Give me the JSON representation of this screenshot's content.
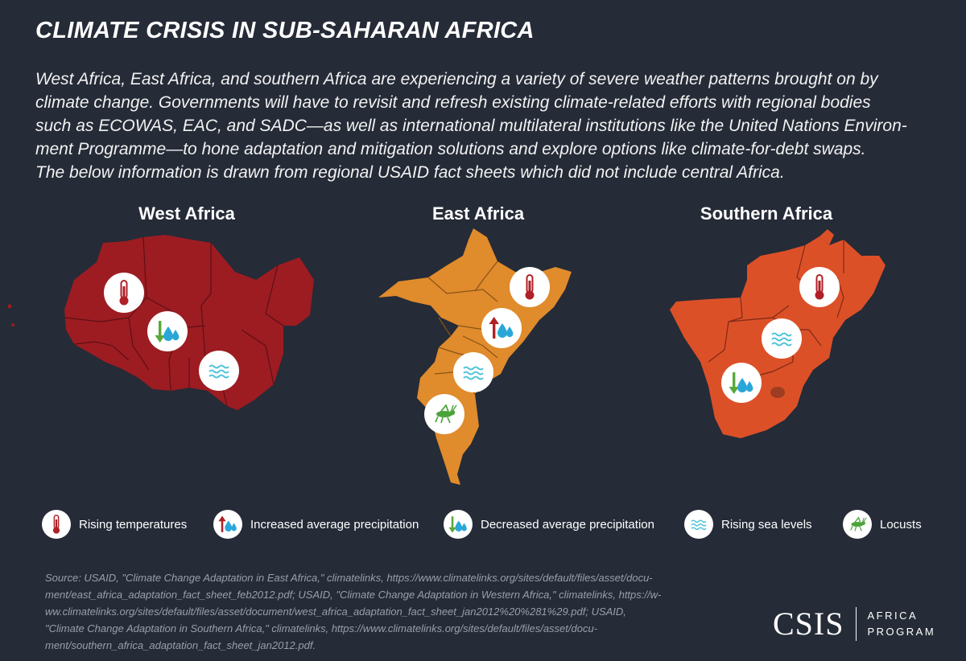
{
  "title": "CLIMATE CRISIS IN SUB-SAHARAN AFRICA",
  "intro_lines": [
    "West Africa, East Africa, and southern Africa are experiencing a variety of severe weather patterns brought on by",
    "climate change. Governments will have to revisit and refresh existing climate-related efforts with regional bodies",
    "such as ECOWAS, EAC, and SADC—as well as international multilateral institutions like the United Nations Environ-",
    "ment Programme—to hone adaptation and mitigation solutions and explore options like climate-for-debt swaps.",
    "The below information is drawn from regional USAID fact sheets which did not include central Africa."
  ],
  "regions": [
    {
      "name": "West Africa",
      "color": "#9c1c22",
      "icons": [
        "thermometer-icon",
        "decreased-precipitation-icon",
        "sea-level-icon"
      ]
    },
    {
      "name": "East Africa",
      "color": "#e08b2c",
      "icons": [
        "thermometer-icon",
        "increased-precipitation-icon",
        "sea-level-icon",
        "locust-icon"
      ]
    },
    {
      "name": "Southern Africa",
      "color": "#dc5028",
      "icons": [
        "thermometer-icon",
        "sea-level-icon",
        "decreased-precipitation-icon"
      ]
    }
  ],
  "legend": [
    {
      "icon": "thermometer-icon",
      "label": "Rising temperatures"
    },
    {
      "icon": "increased-precipitation-icon",
      "label": "Increased average precipitation"
    },
    {
      "icon": "decreased-precipitation-icon",
      "label": "Decreased average precipitation"
    },
    {
      "icon": "sea-level-icon",
      "label": "Rising sea levels"
    },
    {
      "icon": "locust-icon",
      "label": "Locusts"
    }
  ],
  "source_lines": [
    "Source: USAID, \"Climate Change Adaptation in East Africa,\" climatelinks, https://www.climatelinks.org/sites/default/files/asset/docu-",
    "ment/east_africa_adaptation_fact_sheet_feb2012.pdf; USAID, \"Climate Change Adaptation in Western Africa,\" climatelinks, https://w-",
    "ww.climatelinks.org/sites/default/files/asset/document/west_africa_adaptation_fact_sheet_jan2012%20%281%29.pdf; USAID,",
    "\"Climate Change Adaptation in Southern Africa,\" climatelinks, https://www.climatelinks.org/sites/default/files/asset/docu-",
    "ment/southern_africa_adaptation_fact_sheet_jan2012.pdf."
  ],
  "logo": {
    "main": "CSIS",
    "line1": "AFRICA",
    "line2": "PROGRAM"
  },
  "colors": {
    "background": "#252b37",
    "thermometer": "#b02027",
    "arrow_up": "#b02027",
    "arrow_down": "#5aa83a",
    "water": "#2aa7d8",
    "waves": "#4fc3d9",
    "locust": "#4aa43a"
  }
}
